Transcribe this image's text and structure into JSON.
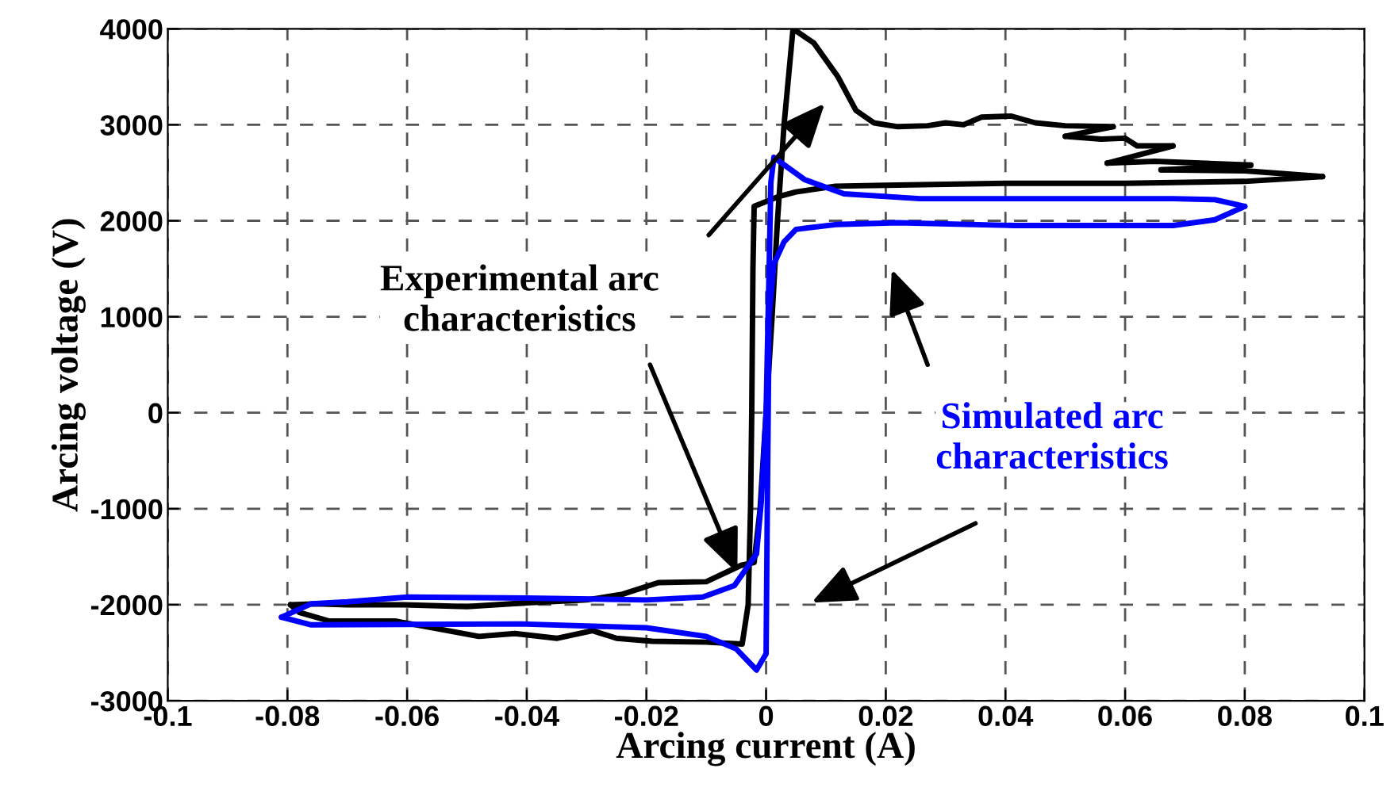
{
  "chart_data": {
    "type": "line",
    "xlabel": "Arcing current (A)",
    "ylabel": "Arcing voltage (V)",
    "xlim": [
      -0.1,
      0.1
    ],
    "xticks": [
      -0.1,
      -0.08,
      -0.06,
      -0.04,
      -0.02,
      0,
      0.02,
      0.04,
      0.06,
      0.08,
      0.1
    ],
    "ylim": [
      -3000,
      4000
    ],
    "yticks": [
      -3000,
      -2000,
      -1000,
      0,
      1000,
      2000,
      3000,
      4000
    ],
    "grid": true,
    "line_style": "solid",
    "marker": "none",
    "series": [
      {
        "color": "#000000",
        "x": [
          -0.0795,
          -0.075,
          -0.07,
          -0.061,
          -0.05,
          -0.04,
          -0.03,
          -0.024,
          -0.018,
          -0.01,
          -0.0042,
          -0.002,
          -0.001,
          0,
          0.001,
          0.0019,
          0.003,
          0.0045,
          0.008,
          0.012,
          0.015,
          0.018,
          0.022,
          0.027,
          0.03,
          0.033,
          0.036,
          0.041,
          0.045,
          0.05,
          0.058
        ],
        "values": [
          -2000,
          -1990,
          -2000,
          -2000,
          -2020,
          -1980,
          -1950,
          -1890,
          -1770,
          -1760,
          -1590,
          -1560,
          -1000,
          0,
          1000,
          2000,
          3000,
          4000,
          3850,
          3500,
          3150,
          3020,
          2980,
          2990,
          3020,
          3000,
          3080,
          3090,
          3020,
          2990,
          2980
        ]
      },
      {
        "color": "#000000",
        "x": [
          0.058,
          0.05
        ],
        "values": [
          2980,
          2880
        ]
      },
      {
        "color": "#000000",
        "x": [
          0.05,
          0.056,
          0.06,
          0.062,
          0.068
        ],
        "values": [
          2880,
          2850,
          2860,
          2780,
          2780
        ]
      },
      {
        "color": "#000000",
        "x": [
          0.068,
          0.057
        ],
        "values": [
          2780,
          2600
        ]
      },
      {
        "color": "#000000",
        "x": [
          0.057,
          0.065,
          0.081
        ],
        "values": [
          2600,
          2620,
          2580
        ]
      },
      {
        "color": "#000000",
        "x": [
          0.081,
          0.066
        ],
        "values": [
          2580,
          2530
        ]
      },
      {
        "color": "#000000",
        "x": [
          0.066,
          0.08,
          0.093
        ],
        "values": [
          2530,
          2520,
          2460
        ]
      },
      {
        "color": "#000000",
        "x": [
          0.093,
          0.08,
          0.06,
          0.04,
          0.02,
          0.0116,
          0.005,
          0.002,
          -0.002,
          -0.0022,
          -0.0024,
          -0.0026,
          -0.003,
          -0.004,
          -0.01,
          -0.019,
          -0.025,
          -0.029,
          -0.035,
          -0.042,
          -0.048,
          -0.055,
          -0.062,
          -0.073,
          -0.078,
          -0.0795
        ],
        "values": [
          2460,
          2410,
          2390,
          2390,
          2370,
          2360,
          2300,
          2250,
          2150,
          1500,
          0,
          -1000,
          -2000,
          -2410,
          -2390,
          -2380,
          -2350,
          -2270,
          -2350,
          -2300,
          -2330,
          -2250,
          -2170,
          -2170,
          -2080,
          -2000
        ]
      },
      {
        "color": "#0000ff",
        "x": [
          -0.081,
          -0.076,
          -0.07,
          -0.06,
          -0.04,
          -0.02,
          -0.0106,
          -0.0053,
          -0.0016,
          -0.0008,
          0,
          0.0005,
          0.0008,
          0.0013,
          0.0064,
          0.013,
          0.0257,
          0.05,
          0.068,
          0.075,
          0.08
        ],
        "values": [
          -2130,
          -1990,
          -1970,
          -1920,
          -1930,
          -1950,
          -1920,
          -1800,
          -1470,
          -920,
          0,
          1500,
          2400,
          2660,
          2430,
          2280,
          2230,
          2230,
          2230,
          2220,
          2150
        ]
      },
      {
        "color": "#0000ff",
        "x": [
          0.08,
          0.075,
          0.068,
          0.0415,
          0.022,
          0.0116,
          0.005,
          0.003,
          0.0013,
          0.0005,
          0.0002,
          0,
          -0.0016,
          -0.005,
          -0.01,
          -0.02,
          -0.041,
          -0.076,
          -0.081
        ],
        "values": [
          2150,
          2010,
          1950,
          1950,
          1980,
          1960,
          1910,
          1780,
          1550,
          1000,
          -1000,
          -2510,
          -2680,
          -2460,
          -2330,
          -2240,
          -2200,
          -2210,
          -2130
        ]
      }
    ],
    "annotations": [
      {
        "text": "Experimental arc\ncharacteristics",
        "x": -0.0048,
        "y": -1670
      },
      "Simulated arc\ncharacteristics"
    ]
  }
}
